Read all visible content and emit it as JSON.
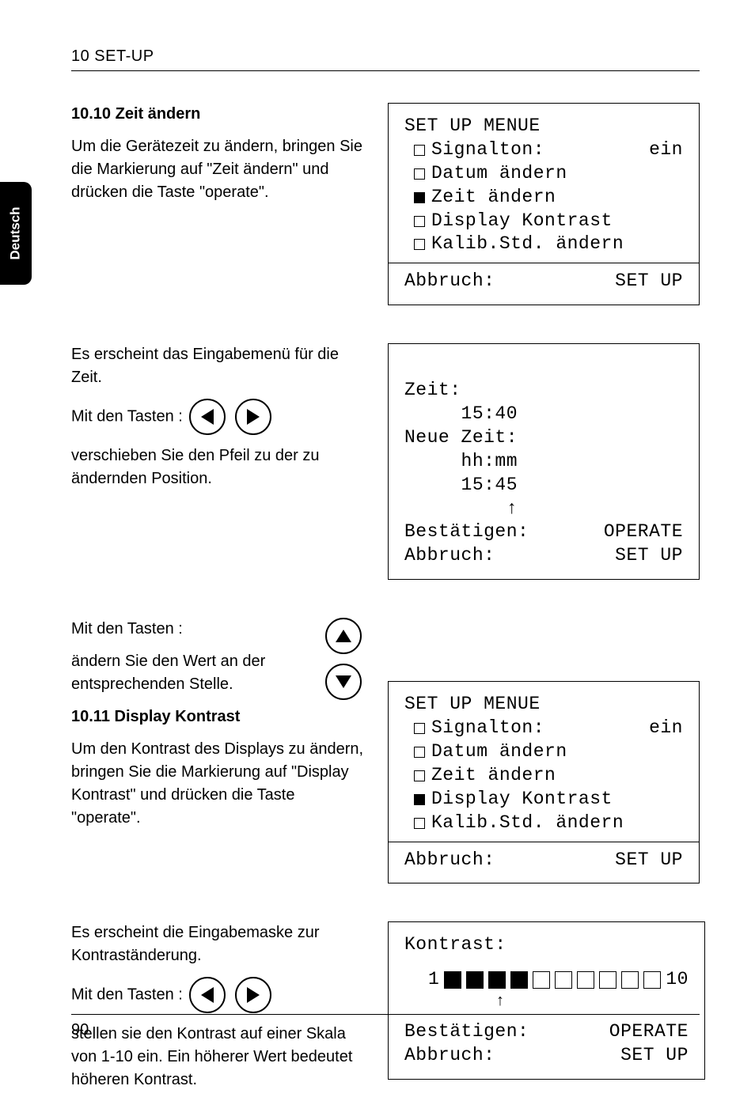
{
  "header": {
    "title": "10 SET-UP"
  },
  "sideTab": {
    "label": "Deutsch"
  },
  "sec1": {
    "heading": "10.10 Zeit ändern",
    "para": "Um die Gerätezeit zu ändern, bringen Sie die Markierung auf \"Zeit ändern\" und drücken die Taste \"operate\"."
  },
  "lcd1": {
    "title": "SET UP MENUE",
    "items": [
      {
        "label": "Signalton:",
        "value": "ein",
        "selected": false
      },
      {
        "label": "Datum ändern",
        "value": "",
        "selected": false
      },
      {
        "label": "Zeit ändern",
        "value": "",
        "selected": true
      },
      {
        "label": "Display Kontrast",
        "value": "",
        "selected": false
      },
      {
        "label": "Kalib.Std. ändern",
        "value": "",
        "selected": false
      }
    ],
    "footerLeft": "Abbruch:",
    "footerRight": "SET UP"
  },
  "sec2": {
    "p1": "Es erscheint das Eingabemenü für die Zeit.",
    "p2": "Mit den Tasten :",
    "p3": "verschieben Sie den Pfeil zu der zu ändernden Position."
  },
  "lcd2": {
    "l1": "Zeit:",
    "l2": "     15:40",
    "l3": "Neue Zeit:",
    "l4": "     hh:mm",
    "l5": "     15:45",
    "l6": "         ↑",
    "c1l": "Bestätigen:",
    "c1r": "OPERATE",
    "c2l": "Abbruch:",
    "c2r": "SET UP"
  },
  "sec3": {
    "p1": "Mit den Tasten :",
    "p2": "ändern Sie den Wert an der entsprechenden Stelle."
  },
  "sec4": {
    "heading": "10.11 Display Kontrast",
    "para": "Um den Kontrast des Displays zu ändern, bringen Sie die Markierung auf \"Display Kontrast\" und drücken die Taste \"operate\"."
  },
  "lcd3": {
    "title": "SET UP MENUE",
    "items": [
      {
        "label": "Signalton:",
        "value": "ein",
        "selected": false
      },
      {
        "label": "Datum ändern",
        "value": "",
        "selected": false
      },
      {
        "label": "Zeit ändern",
        "value": "",
        "selected": false
      },
      {
        "label": "Display Kontrast",
        "value": "",
        "selected": true
      },
      {
        "label": "Kalib.Std. ändern",
        "value": "",
        "selected": false
      }
    ],
    "footerLeft": "Abbruch:",
    "footerRight": "SET UP"
  },
  "sec5": {
    "p1": "Es erscheint die Eingabemaske zur Kontraständerung.",
    "p2": "Mit den Tasten :",
    "p3": "stellen sie den Kontrast auf einer Skala von 1-10 ein. Ein höherer Wert bedeutet höheren Kontrast."
  },
  "lcd4": {
    "title": "Kontrast:",
    "scaleMinLabel": "1",
    "scaleMaxLabel": "10",
    "filled": 4,
    "total": 10,
    "arrow": "↑",
    "c1l": "Bestätigen:",
    "c1r": "OPERATE",
    "c2l": "Abbruch:",
    "c2r": "SET UP"
  },
  "footer": {
    "page": "90"
  }
}
